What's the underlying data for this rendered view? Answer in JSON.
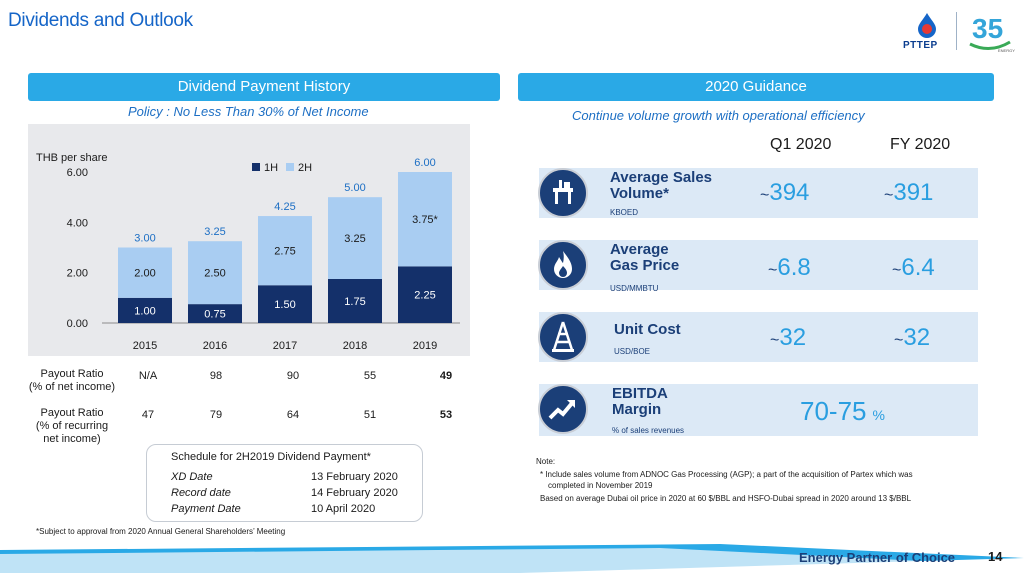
{
  "header": {
    "title": "Dividends and Outlook",
    "logo_text": "PTTEP",
    "anniversary_number": "35"
  },
  "left_panel": {
    "header": "Dividend Payment History",
    "subtitle": "Policy : No Less Than 30% of Net Income",
    "payout_rows": [
      {
        "label_line1": "Payout Ratio",
        "label_line2": "(% of net income)",
        "label_line3": "",
        "values": [
          "N/A",
          "98",
          "90",
          "55",
          "49"
        ]
      },
      {
        "label_line1": "Payout Ratio",
        "label_line2": "(% of recurring",
        "label_line3": "net income)",
        "values": [
          "47",
          "79",
          "64",
          "51",
          "53"
        ]
      }
    ],
    "schedule": {
      "title": "Schedule for 2H2019 Dividend Payment*",
      "rows": [
        {
          "label": "XD Date",
          "value": "13 February 2020"
        },
        {
          "label": "Record date",
          "value": "14 February 2020"
        },
        {
          "label": "Payment Date",
          "value": "10 April 2020"
        }
      ]
    },
    "footnote": "*Subject to approval from 2020 Annual General Shareholders’ Meeting"
  },
  "chart_data": {
    "type": "bar",
    "stacked": true,
    "ylabel": "THB per share",
    "categories": [
      "2015",
      "2016",
      "2017",
      "2018",
      "2019"
    ],
    "series": [
      {
        "name": "1H",
        "values": [
          1.0,
          0.75,
          1.5,
          1.75,
          2.25
        ],
        "labels": [
          "1.00",
          "0.75",
          "1.50",
          "1.75",
          "2.25"
        ],
        "color": "#14306a"
      },
      {
        "name": "2H",
        "values": [
          2.0,
          2.5,
          2.75,
          3.25,
          3.75
        ],
        "labels": [
          "2.00",
          "2.50",
          "2.75",
          "3.25",
          "3.75*"
        ],
        "color": "#a9cdf2"
      }
    ],
    "totals": [
      "3.00",
      "3.25",
      "4.25",
      "5.00",
      "6.00"
    ],
    "ylim": [
      0,
      6
    ],
    "yticks": [
      "0.00",
      "2.00",
      "4.00",
      "6.00"
    ],
    "legend": "top-center",
    "grid": false
  },
  "right_panel": {
    "header": "2020 Guidance",
    "subtitle": "Continue volume growth with operational efficiency",
    "col_q1": "Q1 2020",
    "col_fy": "FY 2020",
    "rows": [
      {
        "title1": "Average Sales",
        "title2": "Volume*",
        "unit": "KBOED",
        "q1": "394",
        "fy": "391",
        "icon": "oil-platform-icon"
      },
      {
        "title1": "Average",
        "title2": "Gas Price",
        "unit": "USD/MMBTU",
        "q1": "6.8",
        "fy": "6.4",
        "icon": "flame-icon"
      },
      {
        "title1": "Unit Cost",
        "title2": "",
        "unit": "USD/BOE",
        "q1": "32",
        "fy": "32",
        "icon": "oil-rig-icon"
      },
      {
        "title1": "EBITDA",
        "title2": "Margin",
        "unit": "% of sales revenues",
        "combined": "70-75",
        "pct": "%",
        "icon": "trend-up-icon"
      }
    ],
    "tilde": "~",
    "note_title": "Note:",
    "note1": "* Include sales volume from  ADNOC Gas Processing (AGP); a part of the acquisition of Partex which was",
    "note1b": "completed in November 2019",
    "note2": "Based on average Dubai oil price in 2020 at 60 $/BBL and HSFO-Dubai spread in 2020 around 13 $/BBL"
  },
  "footer": {
    "tagline": "Energy Partner of Choice",
    "page_number": "14"
  },
  "colors": {
    "accent": "#2aa9e6",
    "navy": "#1b3f78",
    "value_blue": "#2a9ee0",
    "title_blue": "#1565c8"
  }
}
